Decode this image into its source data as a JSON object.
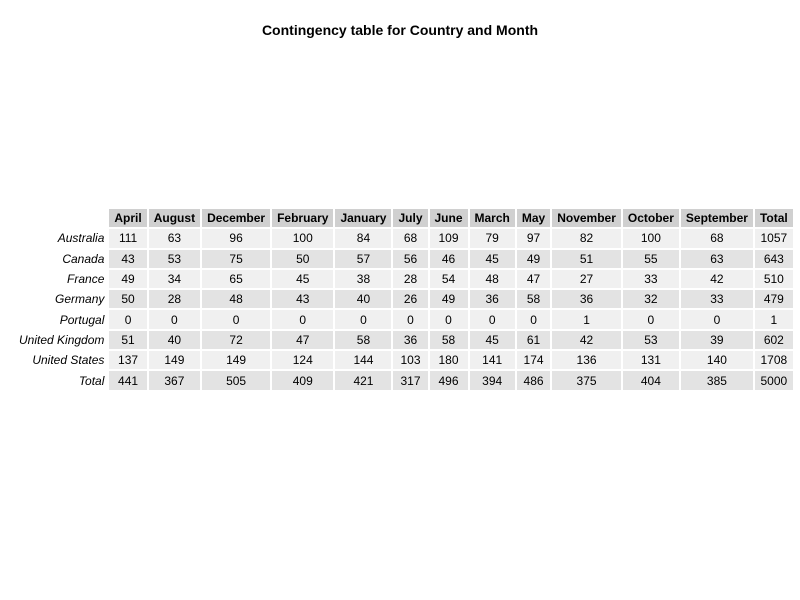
{
  "chart_data": {
    "type": "table",
    "title": "Contingency table for Country and Month",
    "columns": [
      "April",
      "August",
      "December",
      "February",
      "January",
      "July",
      "June",
      "March",
      "May",
      "November",
      "October",
      "September",
      "Total"
    ],
    "rows": [
      {
        "label": "Australia",
        "values": [
          "111",
          "63",
          "96",
          "100",
          "84",
          "68",
          "109",
          "79",
          "97",
          "82",
          "100",
          "68",
          "1057"
        ]
      },
      {
        "label": "Canada",
        "values": [
          "43",
          "53",
          "75",
          "50",
          "57",
          "56",
          "46",
          "45",
          "49",
          "51",
          "55",
          "63",
          "643"
        ]
      },
      {
        "label": "France",
        "values": [
          "49",
          "34",
          "65",
          "45",
          "38",
          "28",
          "54",
          "48",
          "47",
          "27",
          "33",
          "42",
          "510"
        ]
      },
      {
        "label": "Germany",
        "values": [
          "50",
          "28",
          "48",
          "43",
          "40",
          "26",
          "49",
          "36",
          "58",
          "36",
          "32",
          "33",
          "479"
        ]
      },
      {
        "label": "Portugal",
        "values": [
          "0",
          "0",
          "0",
          "0",
          "0",
          "0",
          "0",
          "0",
          "0",
          "1",
          "0",
          "0",
          "1"
        ]
      },
      {
        "label": "United Kingdom",
        "values": [
          "51",
          "40",
          "72",
          "47",
          "58",
          "36",
          "58",
          "45",
          "61",
          "42",
          "53",
          "39",
          "602"
        ]
      },
      {
        "label": "United States",
        "values": [
          "137",
          "149",
          "149",
          "124",
          "144",
          "103",
          "180",
          "141",
          "174",
          "136",
          "131",
          "140",
          "1708"
        ]
      },
      {
        "label": "Total",
        "values": [
          "441",
          "367",
          "505",
          "409",
          "421",
          "317",
          "496",
          "394",
          "486",
          "375",
          "404",
          "385",
          "5000"
        ]
      }
    ]
  }
}
